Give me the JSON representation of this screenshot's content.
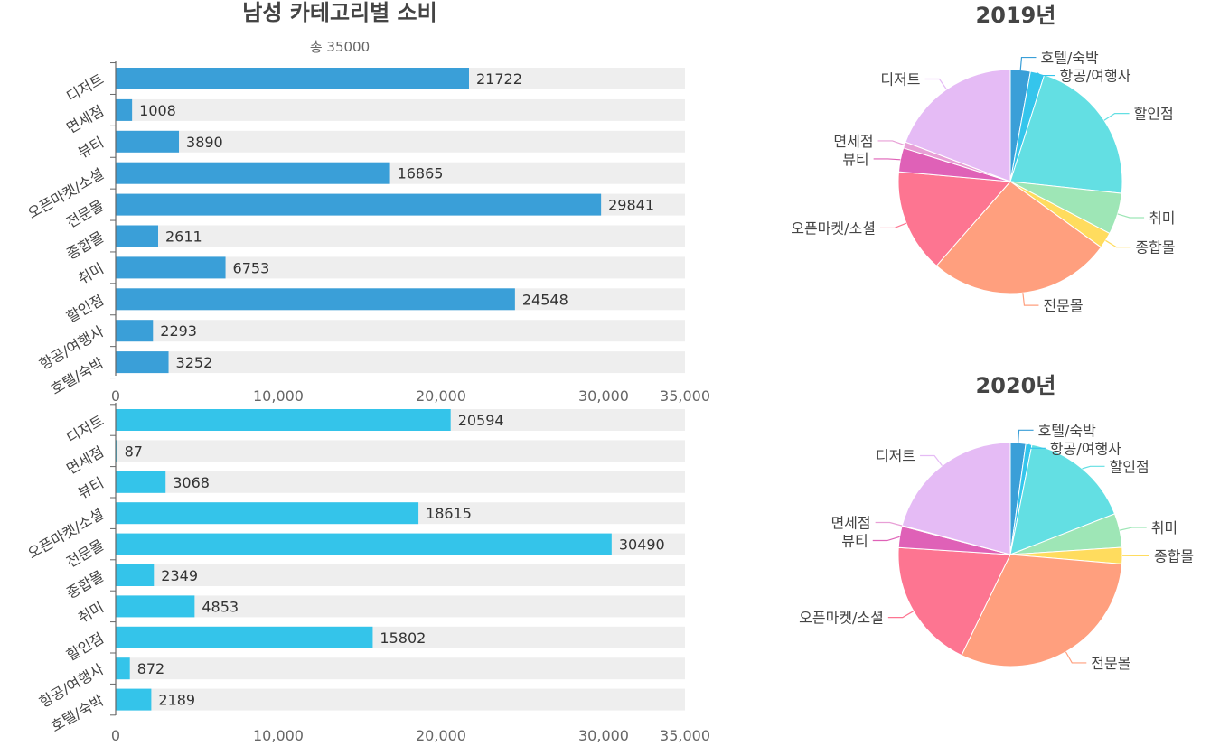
{
  "page_title": "남성 카테고리별 소비",
  "subtitle": "총 35000",
  "colors": {
    "bar_2019": "#3a9fd8",
    "bar_2020": "#34c4ea",
    "track": "#eeeeee",
    "axis": "#666666"
  },
  "chart_data": [
    {
      "type": "bar",
      "orientation": "horizontal",
      "title": "남성 카테고리별 소비",
      "subtitle": "총 35000",
      "categories": [
        "디저트",
        "면세점",
        "뷰티",
        "오픈마켓/소셜",
        "전문몰",
        "종합몰",
        "취미",
        "할인점",
        "항공/여행사",
        "호텔/숙박"
      ],
      "values": [
        21722,
        1008,
        3890,
        16865,
        29841,
        2611,
        6753,
        24548,
        2293,
        3252
      ],
      "xlim": [
        0,
        35000
      ],
      "xticks": [
        "0",
        "10,000",
        "20,000",
        "30,000",
        "35,000"
      ],
      "xtick_values": [
        0,
        10000,
        20000,
        30000,
        35000
      ],
      "background_track": true,
      "color": "#3a9fd8"
    },
    {
      "type": "bar",
      "orientation": "horizontal",
      "categories": [
        "디저트",
        "면세점",
        "뷰티",
        "오픈마켓/소셜",
        "전문몰",
        "종합몰",
        "취미",
        "할인점",
        "항공/여행사",
        "호텔/숙박"
      ],
      "values": [
        20594,
        87,
        3068,
        18615,
        30490,
        2349,
        4853,
        15802,
        872,
        2189
      ],
      "xlim": [
        0,
        35000
      ],
      "xticks": [
        "0",
        "10,000",
        "20,000",
        "30,000",
        "35,000"
      ],
      "xtick_values": [
        0,
        10000,
        20000,
        30000,
        35000
      ],
      "background_track": true,
      "color": "#34c4ea"
    },
    {
      "type": "pie",
      "title": "2019년",
      "labels": [
        "호텔/숙박",
        "항공/여행사",
        "할인점",
        "취미",
        "종합몰",
        "전문몰",
        "오픈마켓/소셜",
        "뷰티",
        "면세점",
        "디저트"
      ],
      "values": [
        3252,
        2293,
        24548,
        6753,
        2611,
        29841,
        16865,
        3890,
        1008,
        21722
      ],
      "colors": [
        "#3a9fd8",
        "#35c5ec",
        "#63dfe3",
        "#9ee6b6",
        "#ffdc5e",
        "#ff9f7e",
        "#fd7591",
        "#df61b7",
        "#e89fd6",
        "#e5bbf5"
      ]
    },
    {
      "type": "pie",
      "title": "2020년",
      "labels": [
        "호텔/숙박",
        "항공/여행사",
        "할인점",
        "취미",
        "종합몰",
        "전문몰",
        "오픈마켓/소셜",
        "뷰티",
        "면세점",
        "디저트"
      ],
      "values": [
        2189,
        872,
        15802,
        4853,
        2349,
        30490,
        18615,
        3068,
        87,
        20594
      ],
      "colors": [
        "#3a9fd8",
        "#35c5ec",
        "#63dfe3",
        "#9ee6b6",
        "#ffdc5e",
        "#ff9f7e",
        "#fd7591",
        "#df61b7",
        "#e89fd6",
        "#e5bbf5"
      ]
    }
  ]
}
